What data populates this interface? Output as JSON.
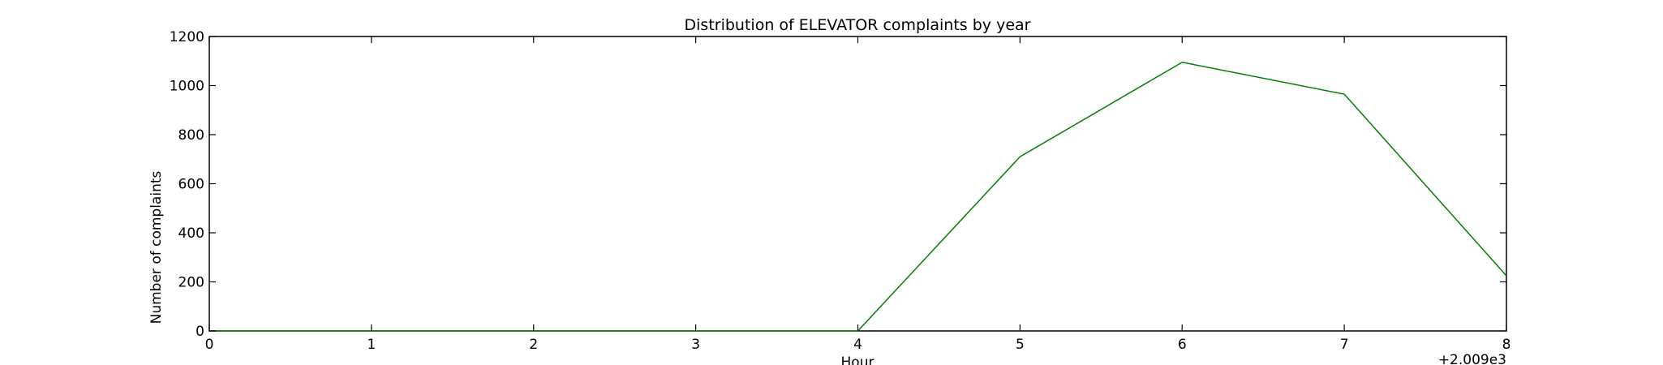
{
  "chart_data": {
    "type": "line",
    "title": "Distribution of  ELEVATOR complaints by year",
    "xlabel": "Hour",
    "ylabel": "Number of complaints",
    "x_offset_label": "+2.009e3",
    "x": [
      0,
      1,
      2,
      3,
      4,
      5,
      6,
      7,
      8
    ],
    "series": [
      {
        "values": [
          0,
          0,
          0,
          0,
          0,
          710,
          1095,
          965,
          225
        ],
        "color": "#008000"
      }
    ],
    "xlim": [
      0,
      8
    ],
    "ylim": [
      0,
      1200
    ],
    "xticks": [
      0,
      1,
      2,
      3,
      4,
      5,
      6,
      7,
      8
    ],
    "yticks": [
      0,
      200,
      400,
      600,
      800,
      1000,
      1200
    ],
    "grid": false,
    "legend": false
  }
}
